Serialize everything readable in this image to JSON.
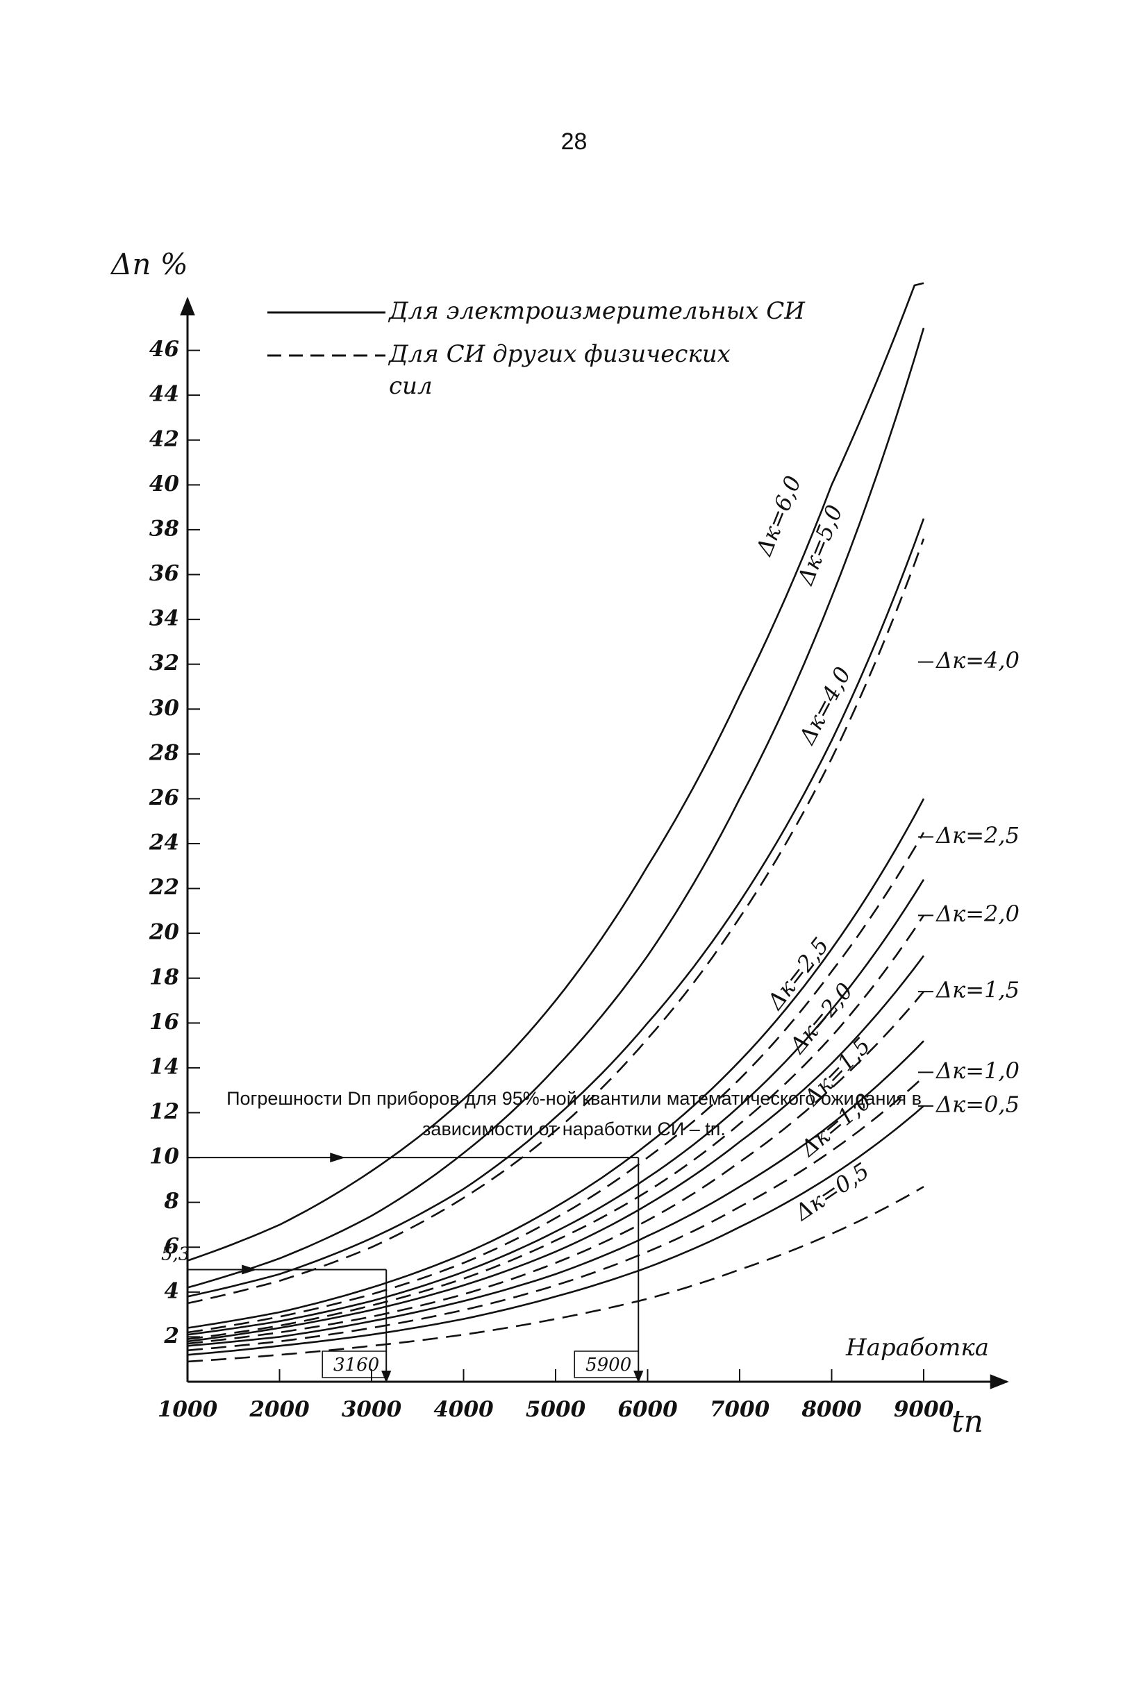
{
  "page_number": "28",
  "caption": {
    "line1": "Погрешности Dп приборов для 95%-ной квантили математического ожидания в",
    "line2": "зависимости от наработки СИ – tп."
  },
  "chart_data": {
    "type": "line",
    "ylabel": "Δп %",
    "xlabel": "tп",
    "x_axis_caption": "Наработка",
    "xlim": [
      1000,
      9000
    ],
    "ylim": [
      0,
      48
    ],
    "x_ticks": [
      1000,
      2000,
      3000,
      4000,
      5000,
      6000,
      7000,
      8000,
      9000
    ],
    "x_tick_labels": [
      "1000",
      "2000",
      "3000",
      "4000",
      "5000",
      "6000",
      "7000",
      "8000",
      "9000"
    ],
    "y_ticks": [
      2,
      4,
      6,
      8,
      10,
      12,
      14,
      16,
      18,
      20,
      22,
      24,
      26,
      28,
      30,
      32,
      34,
      36,
      38,
      40,
      42,
      44,
      46
    ],
    "y_tick_labels": [
      "2",
      "4",
      "6",
      "8",
      "10",
      "12",
      "14",
      "16",
      "18",
      "20",
      "22",
      "24",
      "26",
      "28",
      "30",
      "32",
      "34",
      "36",
      "38",
      "40",
      "42",
      "44",
      "46"
    ],
    "grid": false,
    "legend": {
      "position": "top-left",
      "entries": [
        {
          "style": "solid",
          "label": "Для электроизмерительных СИ"
        },
        {
          "style": "dashed",
          "label_line1": "Для СИ других физических",
          "label_line2": "сил"
        }
      ]
    },
    "series": [
      {
        "label": "Δк=6,0",
        "style": "solid",
        "x": [
          1000,
          2000,
          3000,
          4000,
          5000,
          6000,
          7000,
          8000,
          9000
        ],
        "y": [
          5.4,
          7.0,
          9.4,
          12.6,
          17.0,
          23.0,
          30.6,
          40.0,
          50.0
        ]
      },
      {
        "label": "Δк=5,0",
        "style": "solid",
        "x": [
          1000,
          2000,
          3000,
          4000,
          5000,
          6000,
          7000,
          8000,
          9000
        ],
        "y": [
          4.2,
          5.5,
          7.4,
          10.2,
          14.0,
          19.0,
          26.0,
          35.0,
          47.0
        ]
      },
      {
        "label": "Δк=4,0",
        "style": "solid",
        "x": [
          1000,
          2000,
          3000,
          4000,
          5000,
          6000,
          7000,
          8000,
          9000
        ],
        "y": [
          3.8,
          4.8,
          6.4,
          8.6,
          11.8,
          16.0,
          21.4,
          28.6,
          38.5
        ]
      },
      {
        "label": "Δк=4,0",
        "style": "dashed",
        "x": [
          1000,
          2000,
          3000,
          4000,
          5000,
          6000,
          7000,
          8000,
          9000
        ],
        "y": [
          3.5,
          4.5,
          6.0,
          8.2,
          11.2,
          15.3,
          20.7,
          27.8,
          37.6
        ]
      },
      {
        "label": "Δк=2,5",
        "style": "solid",
        "x": [
          1000,
          2000,
          3000,
          4000,
          5000,
          6000,
          7000,
          8000,
          9000
        ],
        "y": [
          2.4,
          3.1,
          4.2,
          5.7,
          7.8,
          10.6,
          14.3,
          19.3,
          26.0
        ]
      },
      {
        "label": "Δк=2,5",
        "style": "dashed",
        "x": [
          1000,
          2000,
          3000,
          4000,
          5000,
          6000,
          7000,
          8000,
          9000
        ],
        "y": [
          2.2,
          2.9,
          3.9,
          5.3,
          7.3,
          10.0,
          13.5,
          18.3,
          24.5
        ]
      },
      {
        "label": "Δк=2,0",
        "style": "solid",
        "x": [
          1000,
          2000,
          3000,
          4000,
          5000,
          6000,
          7000,
          8000,
          9000
        ],
        "y": [
          2.1,
          2.7,
          3.6,
          4.9,
          6.7,
          9.1,
          12.3,
          16.6,
          22.4
        ]
      },
      {
        "label": "Δк=2,0",
        "style": "dashed",
        "x": [
          1000,
          2000,
          3000,
          4000,
          5000,
          6000,
          7000,
          8000,
          9000
        ],
        "y": [
          1.9,
          2.5,
          3.4,
          4.6,
          6.3,
          8.5,
          11.5,
          15.4,
          20.8
        ]
      },
      {
        "label": "Δк=1,5",
        "style": "solid",
        "x": [
          1000,
          2000,
          3000,
          4000,
          5000,
          6000,
          7000,
          8000,
          9000
        ],
        "y": [
          1.8,
          2.4,
          3.2,
          4.3,
          5.8,
          7.9,
          10.7,
          14.2,
          19.0
        ]
      },
      {
        "label": "Δк=1,5",
        "style": "dashed",
        "x": [
          1000,
          2000,
          3000,
          4000,
          5000,
          6000,
          7000,
          8000,
          9000
        ],
        "y": [
          1.7,
          2.2,
          2.9,
          3.9,
          5.3,
          7.2,
          9.8,
          13.1,
          17.4
        ]
      },
      {
        "label": "Δк=1,0",
        "style": "solid",
        "x": [
          1000,
          2000,
          3000,
          4000,
          5000,
          6000,
          7000,
          8000,
          9000
        ],
        "y": [
          1.6,
          2.0,
          2.7,
          3.6,
          4.8,
          6.5,
          8.7,
          11.5,
          15.2
        ]
      },
      {
        "label": "Δк=1,0",
        "style": "dashed",
        "x": [
          1000,
          2000,
          3000,
          4000,
          5000,
          6000,
          7000,
          8000,
          9000
        ],
        "y": [
          1.4,
          1.8,
          2.4,
          3.2,
          4.3,
          5.8,
          7.8,
          10.3,
          13.6
        ]
      },
      {
        "label": "Δк=0,5",
        "style": "solid",
        "x": [
          1000,
          2000,
          3000,
          4000,
          5000,
          6000,
          7000,
          8000,
          9000
        ],
        "y": [
          1.2,
          1.6,
          2.1,
          2.8,
          3.8,
          5.1,
          6.9,
          9.2,
          12.3
        ]
      },
      {
        "label": "Δк=0,5",
        "style": "dashed",
        "x": [
          1000,
          2000,
          3000,
          4000,
          5000,
          6000,
          7000,
          8000,
          9000
        ],
        "y": [
          0.9,
          1.2,
          1.6,
          2.1,
          2.8,
          3.7,
          5.0,
          6.6,
          8.7
        ]
      }
    ],
    "annotations": [
      {
        "type": "arrow-h",
        "y": 10,
        "x_from": 1000,
        "x_to": 5900
      },
      {
        "type": "arrow-v",
        "x": 5900,
        "y_from": 10,
        "y_to": 0,
        "label": "5900"
      },
      {
        "type": "arrow-h",
        "y": 5,
        "x_from": 1000,
        "x_to": 3160,
        "label": "5,3"
      },
      {
        "type": "arrow-v",
        "x": 3160,
        "y_from": 5,
        "y_to": 0,
        "label": "3160"
      }
    ]
  }
}
